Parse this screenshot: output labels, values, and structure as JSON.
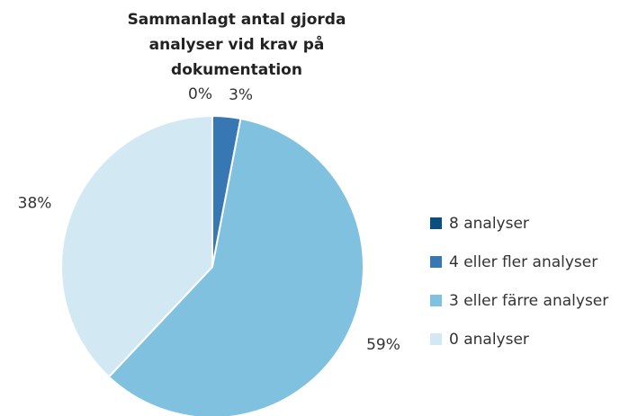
{
  "chart_data": {
    "type": "pie",
    "title": "Sammanlagt antal gjorda analyser vid krav på dokumentation",
    "categories": [
      "8 analyser",
      "4 eller fler analyser",
      "3 eller färre analyser",
      "0 analyser"
    ],
    "values": [
      0,
      3,
      59,
      38
    ],
    "value_labels": [
      "0%",
      "3%",
      "59%",
      "38%"
    ],
    "colors": [
      "#0b4f80",
      "#3777b3",
      "#7fc1df",
      "#d2e9f3"
    ],
    "legend": "right"
  }
}
